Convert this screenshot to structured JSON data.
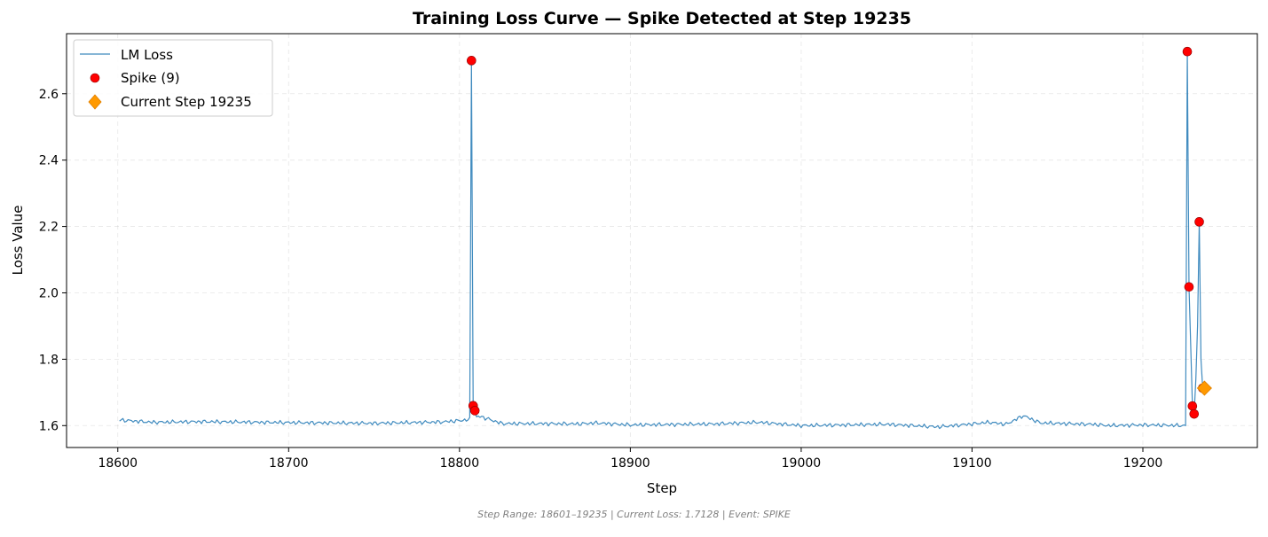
{
  "chart_data": {
    "type": "line",
    "title": "Training Loss Curve — Spike Detected at Step 19235",
    "xlabel": "Step",
    "ylabel": "Loss Value",
    "xlim": [
      18570,
      19267
    ],
    "ylim": [
      1.534,
      2.781
    ],
    "xticks": [
      18600,
      18700,
      18800,
      18900,
      19000,
      19100,
      19200
    ],
    "yticks": [
      1.6,
      1.8,
      2.0,
      2.2,
      2.4,
      2.6
    ],
    "grid": true,
    "legend_position": "top-left",
    "series": [
      {
        "name": "LM Loss",
        "kind": "line",
        "color": "#1f77b4",
        "baseline": [
          [
            18601,
            1.617
          ],
          [
            18620,
            1.61
          ],
          [
            18650,
            1.612
          ],
          [
            18700,
            1.609
          ],
          [
            18750,
            1.607
          ],
          [
            18790,
            1.611
          ],
          [
            18800,
            1.615
          ],
          [
            18806,
            1.618
          ],
          [
            18812,
            1.628
          ],
          [
            18825,
            1.606
          ],
          [
            18850,
            1.606
          ],
          [
            18870,
            1.605
          ],
          [
            18880,
            1.608
          ],
          [
            18900,
            1.602
          ],
          [
            18950,
            1.605
          ],
          [
            18975,
            1.61
          ],
          [
            19000,
            1.6
          ],
          [
            19050,
            1.604
          ],
          [
            19080,
            1.596
          ],
          [
            19100,
            1.605
          ],
          [
            19110,
            1.61
          ],
          [
            19120,
            1.604
          ],
          [
            19130,
            1.63
          ],
          [
            19140,
            1.608
          ],
          [
            19170,
            1.604
          ],
          [
            19180,
            1.6
          ],
          [
            19200,
            1.602
          ],
          [
            19225,
            1.6
          ]
        ],
        "tail": [
          [
            19226,
            2.727
          ],
          [
            19227,
            2.018
          ],
          [
            19228,
            1.84
          ],
          [
            19229,
            1.659
          ],
          [
            19230,
            1.635
          ],
          [
            19231,
            1.74
          ],
          [
            19232,
            1.9
          ],
          [
            19233,
            2.214
          ],
          [
            19234,
            1.8
          ],
          [
            19235,
            1.7128
          ]
        ]
      },
      {
        "name": "Spike (9)",
        "kind": "scatter",
        "color": "#ff0000",
        "points": [
          [
            18807,
            2.7
          ],
          [
            18808,
            1.66
          ],
          [
            18809,
            1.645
          ],
          [
            19226,
            2.727
          ],
          [
            19227,
            2.018
          ],
          [
            19229,
            1.659
          ],
          [
            19230,
            1.635
          ],
          [
            19233,
            2.214
          ],
          [
            19235,
            1.7128
          ]
        ]
      },
      {
        "name": "Current Step 19235",
        "kind": "marker",
        "color": "#ff9900",
        "points": [
          [
            19235,
            1.7128
          ]
        ]
      }
    ]
  },
  "footer": {
    "text": "Step Range: 18601–19235 | Current Loss: 1.7128 | Event: SPIKE"
  }
}
